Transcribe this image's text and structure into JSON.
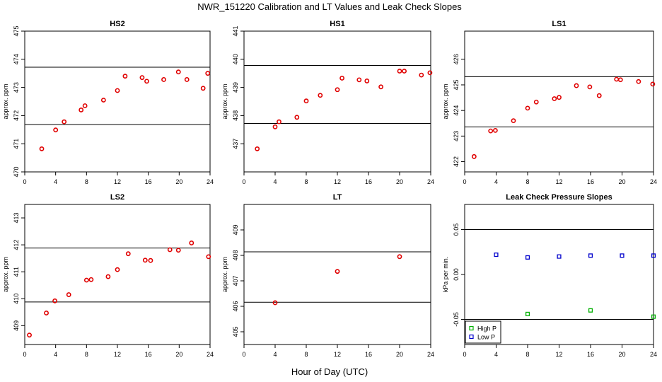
{
  "figure": {
    "title": "NWR_151220  Calibration and LT Values and Leak Check Slopes",
    "xlabel": "Hour of Day (UTC)"
  },
  "colors": {
    "red": "#e00000",
    "green": "#00b000",
    "blue": "#0000cc",
    "axis": "#000000"
  },
  "chart_data": [
    {
      "type": "scatter",
      "title": "HS2",
      "ylabel": "approx. ppm",
      "xlim": [
        0,
        24
      ],
      "ylim": [
        470,
        475
      ],
      "xticks": [
        0,
        4,
        8,
        12,
        16,
        20,
        24
      ],
      "yticks": [
        470,
        471,
        472,
        473,
        474,
        475
      ],
      "hlines": [
        473.72,
        471.68
      ],
      "series": [
        {
          "color": "red",
          "x": [
            2.2,
            4.0,
            5.1,
            7.3,
            7.8,
            10.2,
            12.0,
            13.0,
            15.2,
            15.8,
            18.0,
            19.9,
            21.0,
            23.1,
            23.7
          ],
          "y": [
            470.82,
            471.49,
            471.78,
            472.2,
            472.35,
            472.55,
            472.89,
            473.4,
            473.35,
            473.22,
            473.28,
            473.55,
            473.28,
            472.97,
            473.5
          ]
        }
      ],
      "legend": []
    },
    {
      "type": "scatter",
      "title": "HS1",
      "ylabel": "approx. ppm",
      "xlim": [
        0,
        24
      ],
      "ylim": [
        436,
        441
      ],
      "xticks": [
        0,
        4,
        8,
        12,
        16,
        20,
        24
      ],
      "yticks": [
        437,
        438,
        439,
        440,
        441
      ],
      "hlines": [
        439.78,
        437.72
      ],
      "series": [
        {
          "color": "red",
          "x": [
            1.7,
            4.0,
            4.5,
            6.8,
            8.0,
            9.8,
            12.0,
            12.6,
            14.8,
            15.8,
            17.6,
            20.0,
            20.6,
            22.8,
            23.9
          ],
          "y": [
            436.82,
            437.6,
            437.78,
            437.94,
            438.52,
            438.72,
            438.92,
            439.33,
            439.27,
            439.23,
            439.02,
            439.58,
            439.58,
            439.44,
            439.52
          ]
        }
      ],
      "legend": []
    },
    {
      "type": "scatter",
      "title": "LS1",
      "ylabel": "approx. ppm",
      "xlim": [
        0,
        24
      ],
      "ylim": [
        421.6,
        427.1
      ],
      "xticks": [
        0,
        4,
        8,
        12,
        16,
        20,
        24
      ],
      "yticks": [
        422,
        423,
        424,
        425,
        426
      ],
      "hlines": [
        425.32,
        423.36
      ],
      "series": [
        {
          "color": "red",
          "x": [
            1.2,
            3.3,
            3.9,
            6.2,
            8.0,
            9.1,
            11.4,
            12.0,
            14.2,
            15.9,
            17.1,
            19.3,
            19.8,
            22.1,
            23.9
          ],
          "y": [
            422.2,
            423.2,
            423.22,
            423.6,
            424.09,
            424.33,
            424.46,
            424.51,
            424.97,
            424.92,
            424.58,
            425.22,
            425.2,
            425.13,
            425.03
          ]
        }
      ],
      "legend": []
    },
    {
      "type": "scatter",
      "title": "LS2",
      "ylabel": "approx. ppm",
      "xlim": [
        0,
        24
      ],
      "ylim": [
        408.3,
        413.5
      ],
      "xticks": [
        0,
        4,
        8,
        12,
        16,
        20,
        24
      ],
      "yticks": [
        409,
        410,
        411,
        412,
        413
      ],
      "hlines": [
        411.88,
        409.88
      ],
      "series": [
        {
          "color": "red",
          "x": [
            0.6,
            2.8,
            3.9,
            5.7,
            8.0,
            8.6,
            10.8,
            12.0,
            13.4,
            15.6,
            16.3,
            18.8,
            19.9,
            21.6,
            23.8
          ],
          "y": [
            408.65,
            409.47,
            409.92,
            410.15,
            410.69,
            410.71,
            410.82,
            411.08,
            411.67,
            411.43,
            411.42,
            411.82,
            411.8,
            412.07,
            411.56
          ]
        }
      ],
      "legend": []
    },
    {
      "type": "scatter",
      "title": "LT",
      "ylabel": "approx. ppm",
      "xlim": [
        0,
        24
      ],
      "ylim": [
        404.5,
        410
      ],
      "xticks": [
        0,
        4,
        8,
        12,
        16,
        20,
        24
      ],
      "yticks": [
        405,
        406,
        407,
        408,
        409
      ],
      "hlines": [
        408.14,
        406.16
      ],
      "series": [
        {
          "color": "red",
          "x": [
            4.0,
            12.0,
            20.0
          ],
          "y": [
            406.14,
            407.37,
            407.95
          ]
        }
      ],
      "legend": []
    },
    {
      "type": "scatter",
      "title": "Leak Check Pressure Slopes",
      "ylabel": "kPa per min.",
      "xlim": [
        0,
        24
      ],
      "ylim": [
        -0.078,
        0.078
      ],
      "xticks": [
        0,
        4,
        8,
        12,
        16,
        20,
        24
      ],
      "yticks": [
        -0.05,
        0,
        0.05
      ],
      "ytick_labels": [
        "-0.05",
        "0.00",
        "0.05"
      ],
      "hlines": [
        0.05,
        -0.05
      ],
      "series": [
        {
          "name": "High P",
          "color": "green",
          "x": [
            8.0,
            16.0,
            24.0
          ],
          "y": [
            -0.044,
            -0.04,
            -0.047
          ]
        },
        {
          "name": "Low P",
          "color": "blue",
          "x": [
            4.0,
            8.0,
            12.0,
            16.0,
            20.0,
            24.0
          ],
          "y": [
            0.022,
            0.019,
            0.02,
            0.021,
            0.021,
            0.021
          ]
        }
      ],
      "legend": [
        "High P",
        "Low P"
      ]
    }
  ]
}
